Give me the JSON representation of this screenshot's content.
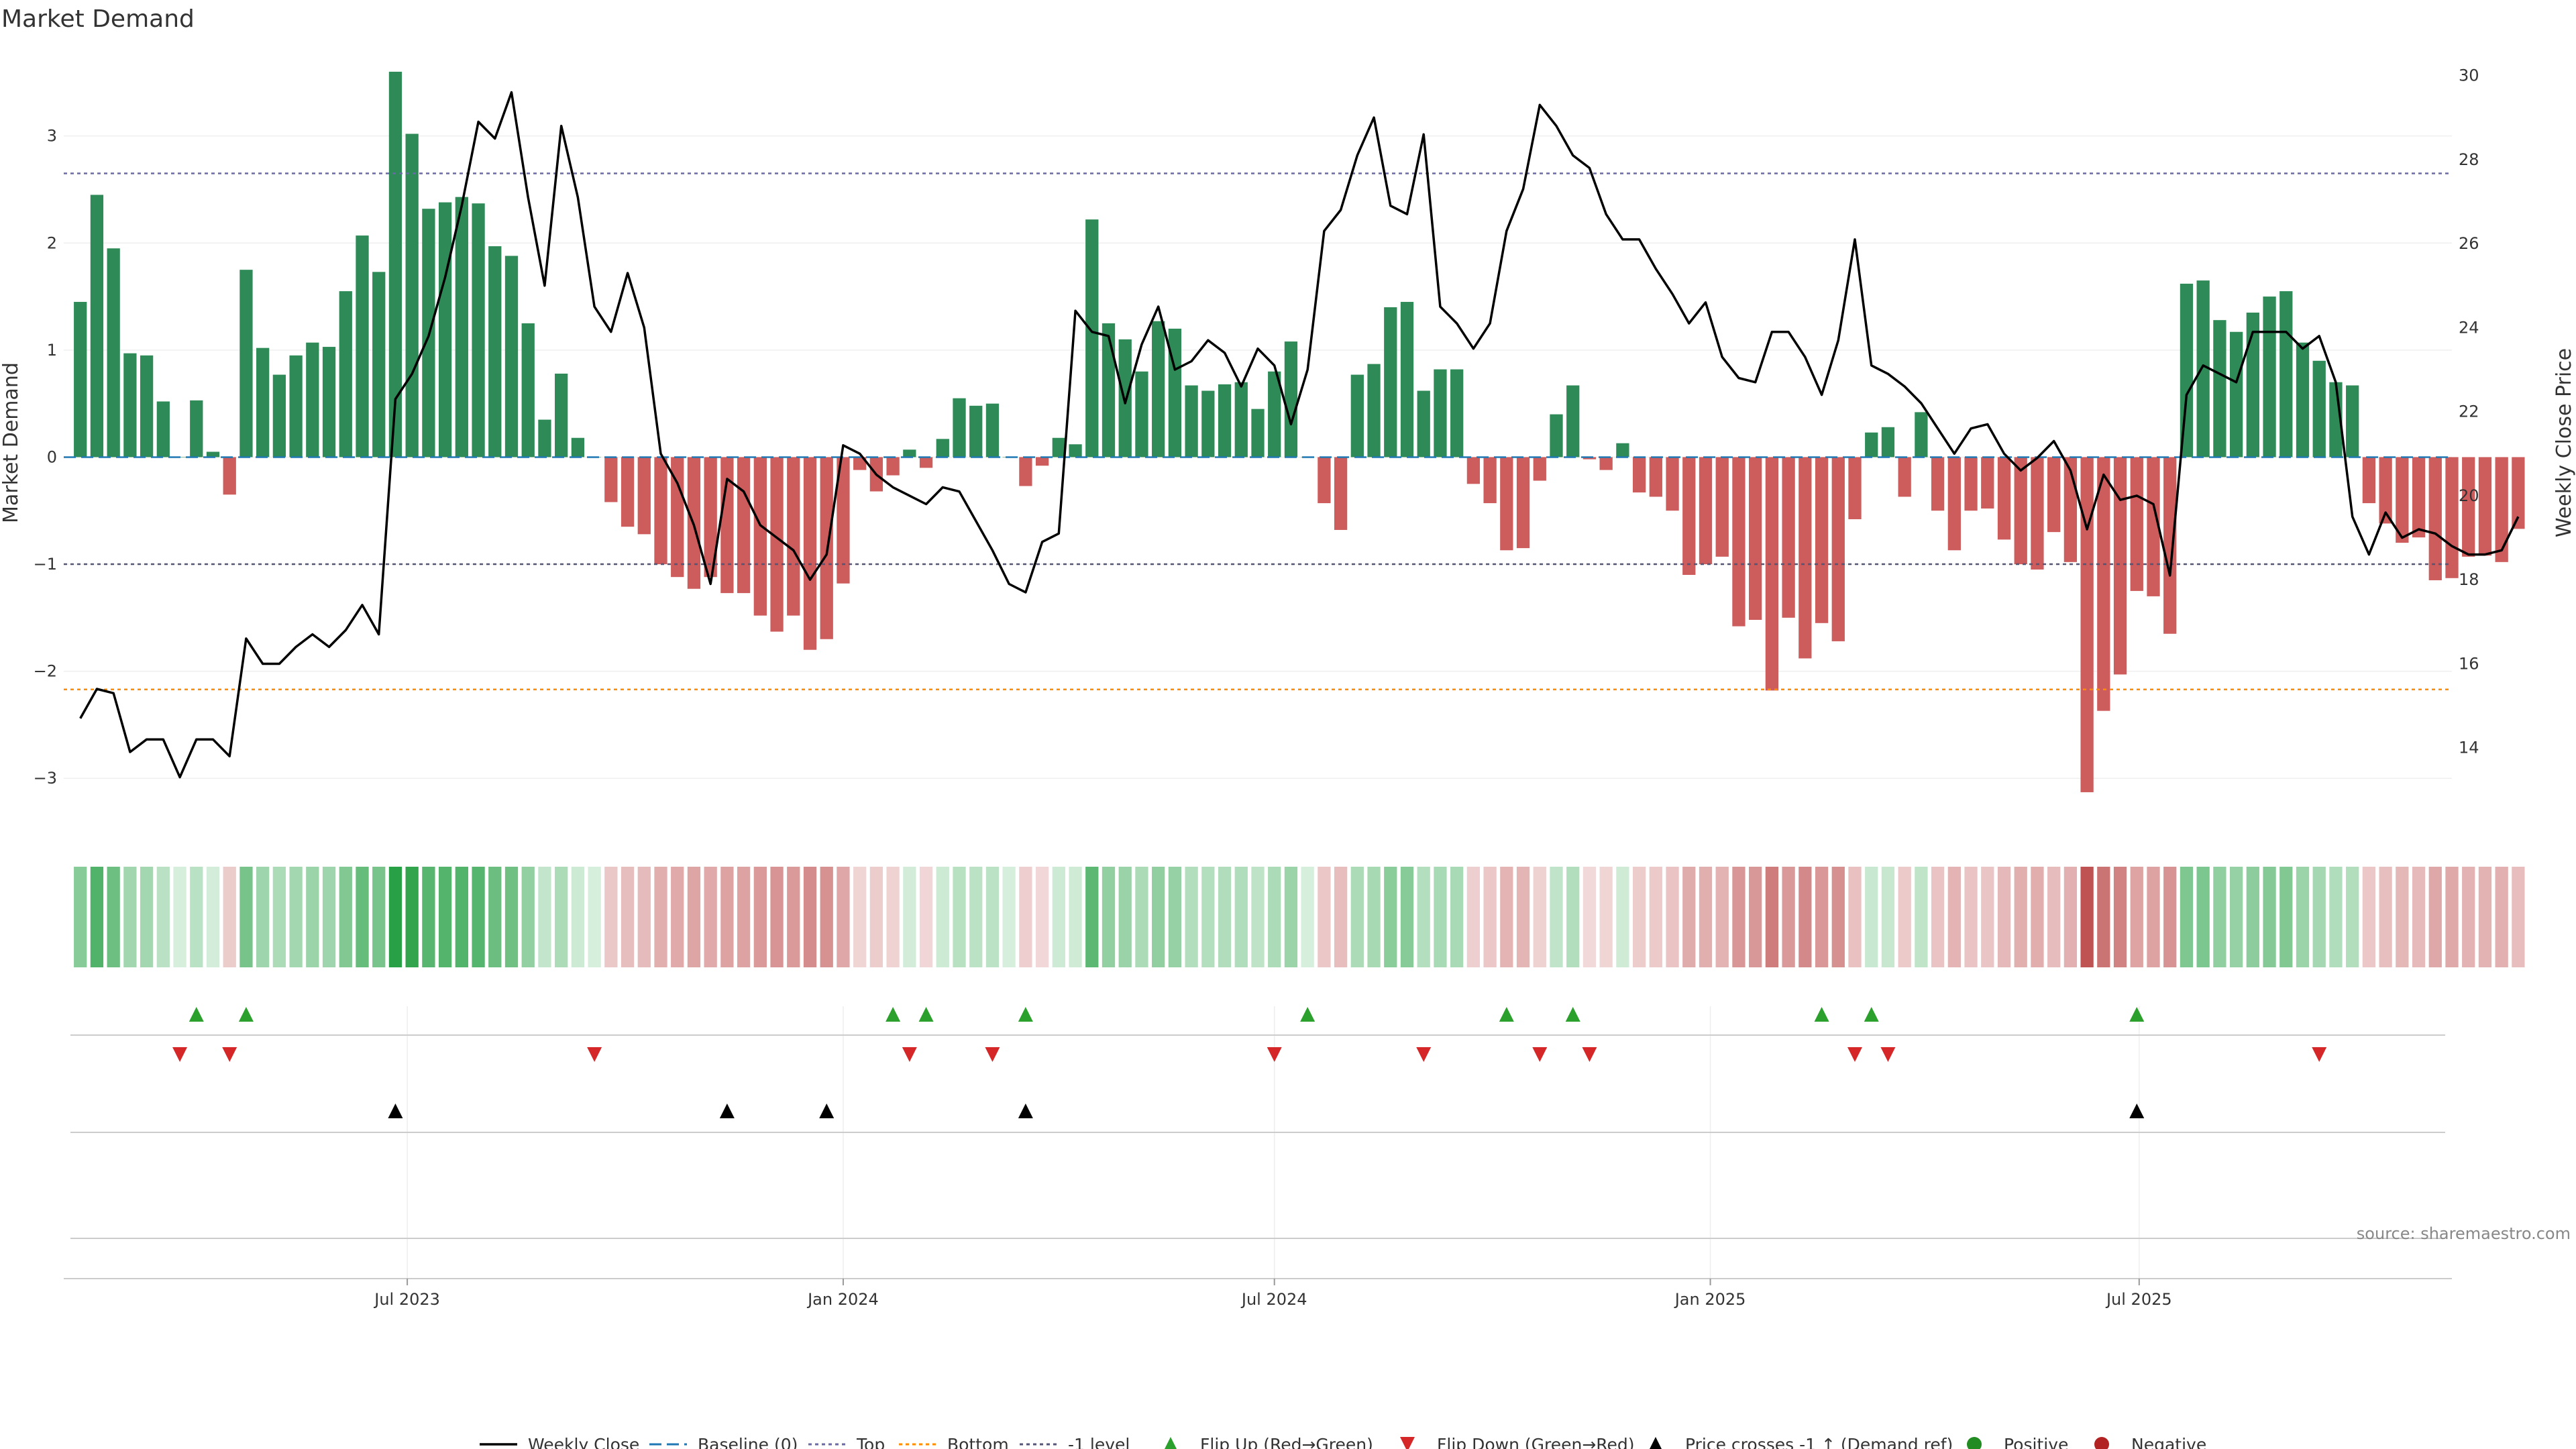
{
  "chart_data": {
    "type": "bar",
    "title": "Market Demand",
    "ylabel": "Market Demand",
    "y2label": "Weekly Close Price",
    "ylim": [
      -3.5,
      3.8
    ],
    "y2lim": [
      12,
      30.6
    ],
    "yticks": [
      -3,
      -2,
      -1,
      0,
      1,
      2,
      3
    ],
    "y2ticks": [
      14,
      16,
      18,
      20,
      22,
      24,
      26,
      28,
      30
    ],
    "xlim": [
      "2023-02-06",
      "2025-11-10"
    ],
    "xticks": [
      {
        "date": "2023-07-01",
        "label": "Jul 2023"
      },
      {
        "date": "2024-01-01",
        "label": "Jan 2024"
      },
      {
        "date": "2024-07-01",
        "label": "Jul 2024"
      },
      {
        "date": "2025-01-01",
        "label": "Jan 2025"
      },
      {
        "date": "2025-07-01",
        "label": "Jul 2025"
      }
    ],
    "start_week": "2023-02-13",
    "demand": [
      1.45,
      2.45,
      1.95,
      0.97,
      0.95,
      0.52,
      0.0,
      0.53,
      0.05,
      -0.35,
      1.75,
      1.02,
      0.77,
      0.95,
      1.07,
      1.03,
      1.55,
      2.07,
      1.73,
      3.6,
      3.02,
      2.32,
      2.38,
      2.43,
      2.37,
      1.97,
      1.88,
      1.25,
      0.35,
      0.78,
      0.18,
      0.0,
      -0.42,
      -0.65,
      -0.72,
      -1.0,
      -1.12,
      -1.23,
      -1.12,
      -1.27,
      -1.27,
      -1.48,
      -1.63,
      -1.48,
      -1.8,
      -1.7,
      -1.18,
      -0.12,
      -0.32,
      -0.17,
      0.07,
      -0.1,
      0.17,
      0.55,
      0.48,
      0.5,
      0.0,
      -0.27,
      -0.08,
      0.18,
      0.12,
      2.22,
      1.25,
      1.1,
      0.8,
      1.27,
      1.2,
      0.67,
      0.62,
      0.68,
      0.7,
      0.45,
      0.8,
      1.08,
      0.0,
      -0.43,
      -0.68,
      0.77,
      0.87,
      1.4,
      1.45,
      0.62,
      0.82,
      0.82,
      -0.25,
      -0.43,
      -0.87,
      -0.85,
      -0.22,
      0.4,
      0.67,
      -0.02,
      -0.12,
      0.13,
      -0.33,
      -0.37,
      -0.5,
      -1.1,
      -1.0,
      -0.93,
      -1.58,
      -1.52,
      -2.18,
      -1.5,
      -1.88,
      -1.55,
      -1.72,
      -0.58,
      0.23,
      0.28,
      -0.37,
      0.42,
      -0.5,
      -0.87,
      -0.5,
      -0.48,
      -0.77,
      -1.0,
      -1.05,
      -0.7,
      -0.98,
      -3.13,
      -2.37,
      -2.03,
      -1.25,
      -1.3,
      -1.65,
      1.62,
      1.65,
      1.28,
      1.17,
      1.35,
      1.5,
      1.55,
      1.07,
      0.9,
      0.7,
      0.67,
      -0.43,
      -0.62,
      -0.8,
      -0.75,
      -1.15,
      -1.13,
      -0.93,
      -0.92,
      -0.98,
      -0.67
    ],
    "weekly_close": [
      14.7,
      15.4,
      15.3,
      13.9,
      14.2,
      14.2,
      13.3,
      14.2,
      14.2,
      13.8,
      16.6,
      16.0,
      16.0,
      16.4,
      16.7,
      16.4,
      16.8,
      17.4,
      16.7,
      22.3,
      22.9,
      23.8,
      25.2,
      26.9,
      28.9,
      28.5,
      29.6,
      27.1,
      25.0,
      28.8,
      27.1,
      24.5,
      23.9,
      25.3,
      24.0,
      21.0,
      20.3,
      19.3,
      17.9,
      20.4,
      20.1,
      19.3,
      19.0,
      18.7,
      18.0,
      18.6,
      21.2,
      21.0,
      20.5,
      20.2,
      20.0,
      19.8,
      20.2,
      20.1,
      19.4,
      18.7,
      17.9,
      17.7,
      18.9,
      19.1,
      24.4,
      23.9,
      23.8,
      22.2,
      23.6,
      24.5,
      23.0,
      23.2,
      23.7,
      23.4,
      22.6,
      23.5,
      23.1,
      21.7,
      23.0,
      26.3,
      26.8,
      28.1,
      29.0,
      26.9,
      26.7,
      28.6,
      24.5,
      24.1,
      23.5,
      24.1,
      26.3,
      27.3,
      29.3,
      28.8,
      28.1,
      27.8,
      26.7,
      26.1,
      26.1,
      25.4,
      24.8,
      24.1,
      24.6,
      23.3,
      22.8,
      22.7,
      23.9,
      23.9,
      23.3,
      22.4,
      23.7,
      26.1,
      23.1,
      22.9,
      22.6,
      22.2,
      21.6,
      21.0,
      21.6,
      21.7,
      21.0,
      20.6,
      20.9,
      21.3,
      20.6,
      19.2,
      20.5,
      19.9,
      20.0,
      19.8,
      18.1,
      22.4,
      23.1,
      22.9,
      22.7,
      23.9,
      23.9,
      23.9,
      23.5,
      23.8,
      22.7,
      19.5,
      18.6,
      19.6,
      19.0,
      19.2,
      19.1,
      18.8,
      18.6,
      18.6,
      18.7,
      19.5
    ],
    "levels": {
      "top": 2.65,
      "bottom": -2.17,
      "minus_one": -1.0,
      "baseline": 0
    },
    "flip_up_idx": [
      7,
      10,
      49,
      51,
      57,
      74,
      86,
      90,
      105,
      108,
      124
    ],
    "flip_down_idx": [
      6,
      9,
      31,
      50,
      55,
      72,
      81,
      88,
      91,
      107,
      109,
      135
    ],
    "price_cross_idx": [
      19,
      39,
      45,
      57,
      124
    ],
    "legend": [
      {
        "key": "close",
        "label": "Weekly Close"
      },
      {
        "key": "baseline",
        "label": "Baseline (0)"
      },
      {
        "key": "top",
        "label": "Top"
      },
      {
        "key": "bottom",
        "label": "Bottom"
      },
      {
        "key": "minus_one",
        "label": "-1 level"
      },
      {
        "key": "flip_up",
        "label": "Flip Up (Red→Green)"
      },
      {
        "key": "flip_down",
        "label": "Flip Down (Green→Red)"
      },
      {
        "key": "price_cross",
        "label": "Price crosses -1 ↑ (Demand ref)"
      },
      {
        "key": "positive",
        "label": "Positive"
      },
      {
        "key": "negative",
        "label": "Negative"
      }
    ],
    "source": "source: sharemaestro.com",
    "colors": {
      "positive": "#2e8b57",
      "negative": "#cd5c5c",
      "close": "#000000",
      "baseline": "#1f77b4",
      "top": "#6a6aa8",
      "bottom": "#ff8c00",
      "minus_one": "#555577",
      "flip_up": "#2ca02c",
      "flip_down": "#d62728",
      "price_cross": "#000000",
      "dot_positive": "#228b22",
      "dot_negative": "#b22222"
    }
  }
}
